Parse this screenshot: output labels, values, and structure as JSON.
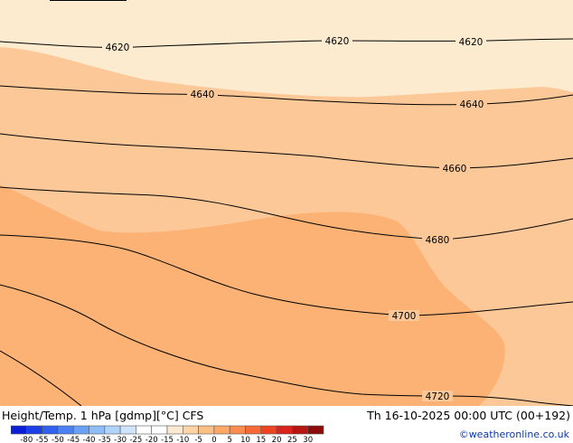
{
  "map": {
    "contours": [
      {
        "value": "4620",
        "labels": [
          "4620",
          "4620",
          "4620"
        ]
      },
      {
        "value": "4640",
        "labels": [
          "4640",
          "4640"
        ]
      },
      {
        "value": "4660",
        "labels": [
          "4660"
        ]
      },
      {
        "value": "4680",
        "labels": [
          "4680"
        ]
      },
      {
        "value": "4700",
        "labels": [
          "4700"
        ]
      },
      {
        "value": "4720",
        "labels": [
          "4720"
        ]
      }
    ],
    "fill_colors": {
      "light": "#fdebd0",
      "mid": "#fdc898",
      "dark": "#fcb275"
    }
  },
  "footer": {
    "title": "Height/Temp. 1 hPa [gdmp][°C] CFS",
    "valid_time": "Th 16-10-2025 00:00 UTC (00+192)",
    "credit": "©weatheronline.co.uk"
  },
  "color_scale": {
    "ticks": [
      "-80",
      "-55",
      "-50",
      "-45",
      "-40",
      "-35",
      "-30",
      "-25",
      "-20",
      "-15",
      "-10",
      "-5",
      "0",
      "5",
      "10",
      "15",
      "20",
      "25",
      "30"
    ],
    "colors": [
      "#0a1fd6",
      "#1a3fe6",
      "#2f61ee",
      "#4a81f4",
      "#6aa0f6",
      "#8ebdf8",
      "#b0d3fa",
      "#cfe3fb",
      "#ffffff",
      "#ffffff",
      "#fde9cf",
      "#fdd4a6",
      "#fcbf84",
      "#fba868",
      "#f98c4e",
      "#f56a36",
      "#ef4424",
      "#d82419",
      "#b81410",
      "#8c0c0b"
    ]
  }
}
